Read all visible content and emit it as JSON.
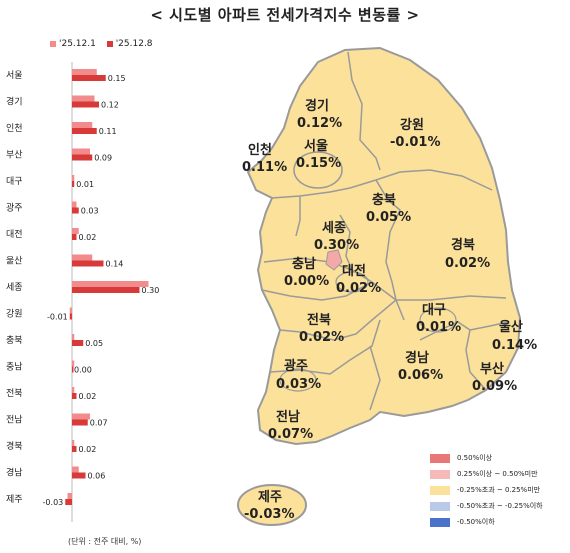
{
  "title": "< 시도별 아파트 전세가격지수 변동률 >",
  "unit_note": "(단위 : 전주 대비, %)",
  "colors": {
    "prev": "#f28b8b",
    "curr": "#d83a3a",
    "land": "#fbe19a",
    "border": "#9a9a9a",
    "sejong": "#f4a9a9"
  },
  "chart_data": {
    "type": "bar",
    "orientation": "horizontal",
    "categories": [
      "서울",
      "경기",
      "인천",
      "부산",
      "대구",
      "광주",
      "대전",
      "울산",
      "세종",
      "강원",
      "충북",
      "충남",
      "전북",
      "전남",
      "경북",
      "경남",
      "제주"
    ],
    "series": [
      {
        "name": "'25.12.1",
        "values": [
          0.11,
          0.1,
          0.09,
          0.08,
          0.01,
          0.02,
          0.03,
          0.09,
          0.34,
          -0.01,
          0.01,
          0.01,
          0.01,
          0.08,
          0.01,
          0.03,
          -0.02
        ]
      },
      {
        "name": "'25.12.8",
        "values": [
          0.15,
          0.12,
          0.11,
          0.09,
          0.01,
          0.03,
          0.02,
          0.14,
          0.3,
          -0.01,
          0.05,
          0.0,
          0.02,
          0.07,
          0.02,
          0.06,
          -0.03
        ]
      }
    ],
    "value_labels": [
      "0.15",
      "0.12",
      "0.11",
      "0.09",
      "0.01",
      "0.03",
      "0.02",
      "0.14",
      "0.30",
      "-0.01",
      "0.05",
      "0.00",
      "0.02",
      "0.07",
      "0.02",
      "0.06",
      "-0.03"
    ]
  },
  "map": {
    "regions": [
      {
        "name": "경기",
        "value": "0.12%"
      },
      {
        "name": "강원",
        "value": "-0.01%"
      },
      {
        "name": "인천",
        "value": "0.11%"
      },
      {
        "name": "서울",
        "value": "0.15%"
      },
      {
        "name": "충북",
        "value": "0.05%"
      },
      {
        "name": "세종",
        "value": "0.30%"
      },
      {
        "name": "충남",
        "value": "0.00%"
      },
      {
        "name": "대전",
        "value": "0.02%"
      },
      {
        "name": "경북",
        "value": "0.02%"
      },
      {
        "name": "대구",
        "value": "0.01%"
      },
      {
        "name": "전북",
        "value": "0.02%"
      },
      {
        "name": "울산",
        "value": "0.14%"
      },
      {
        "name": "광주",
        "value": "0.03%"
      },
      {
        "name": "경남",
        "value": "0.06%"
      },
      {
        "name": "부산",
        "value": "0.09%"
      },
      {
        "name": "전남",
        "value": "0.07%"
      },
      {
        "name": "제주",
        "value": "-0.03%"
      }
    ],
    "legend": [
      {
        "label": "0.50%이상",
        "color": "#e97777"
      },
      {
        "label": "0.25%이상 ~ 0.50%미만",
        "color": "#f6b9b9"
      },
      {
        "label": "-0.25%초과 ~ 0.25%미만",
        "color": "#fbe19a"
      },
      {
        "label": "-0.50%초과 ~ -0.25%이하",
        "color": "#b9c9ea"
      },
      {
        "label": "-0.50%이하",
        "color": "#4a72c8"
      }
    ]
  }
}
